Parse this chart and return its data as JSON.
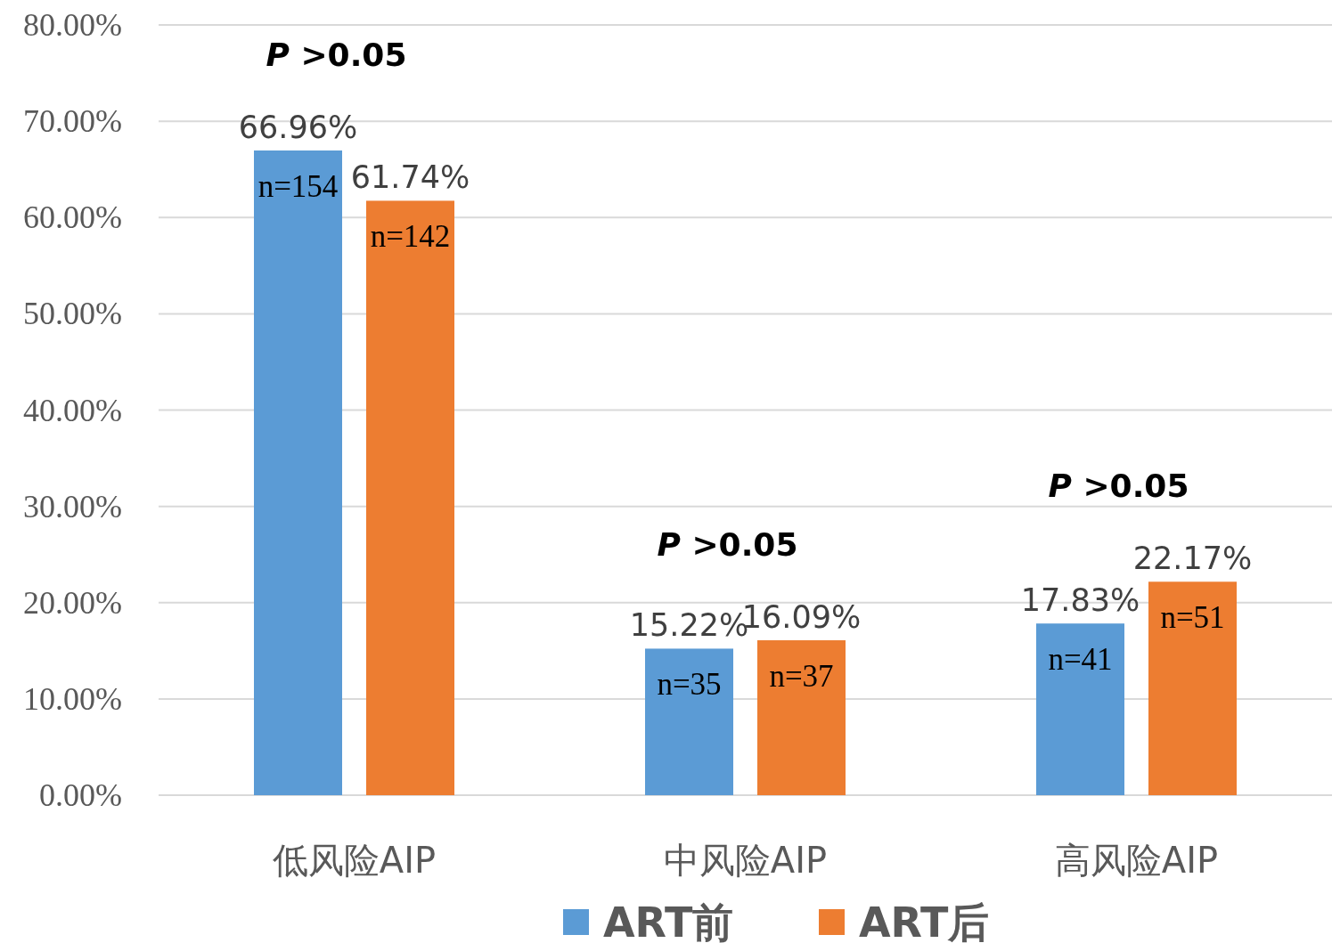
{
  "chart_data": {
    "type": "bar",
    "categories": [
      "低风险AIP",
      "中风险AIP",
      "高风险AIP"
    ],
    "series": [
      {
        "name": "ART前",
        "color": "#5b9bd5",
        "values": [
          66.96,
          15.22,
          17.83
        ],
        "value_labels": [
          "66.96%",
          "15.22%",
          "17.83%"
        ]
      },
      {
        "name": "ART后",
        "color": "#ed7d31",
        "values": [
          61.74,
          16.09,
          22.17
        ],
        "value_labels": [
          "61.74%",
          "16.09%",
          "22.17%"
        ]
      }
    ],
    "ylim": [
      0,
      80
    ],
    "yticks": [
      {
        "value": 0,
        "label": "0.00%"
      },
      {
        "value": 10,
        "label": "10.00%"
      },
      {
        "value": 20,
        "label": "20.00%"
      },
      {
        "value": 30,
        "label": "30.00%"
      },
      {
        "value": 40,
        "label": "40.00%"
      },
      {
        "value": 50,
        "label": "50.00%"
      },
      {
        "value": 60,
        "label": "60.00%"
      },
      {
        "value": 70,
        "label": "70.00%"
      },
      {
        "value": 80,
        "label": "80.00%"
      }
    ],
    "grid": "y",
    "legend": "bottom",
    "annotations": [
      "P >0.05",
      "n=154",
      "n=142",
      "P >0.05",
      "n=35",
      "n=37",
      "P >0.05",
      "n=41",
      "n=51"
    ]
  }
}
